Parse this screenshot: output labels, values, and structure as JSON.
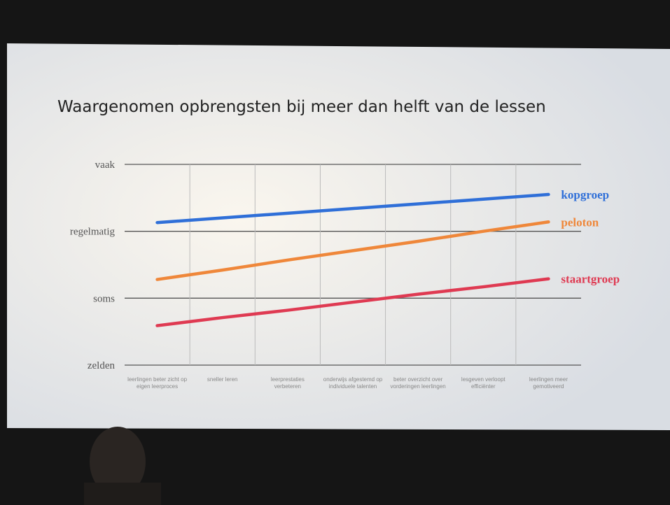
{
  "chart_data": {
    "type": "line",
    "title": "Waargenomen opbrengsten bij meer dan helft van de lessen",
    "categories": [
      "leerlingen beter zicht op eigen leerproces",
      "sneller leren",
      "leerprestaties verbeteren",
      "onderwijs afgestemd op individuele talenten",
      "beter overzicht over vorderingen leerlingen",
      "lesgeven verloopt efficiënter",
      "leerlingen meer gemotiveerd"
    ],
    "series": [
      {
        "name": "kopgroep",
        "color": "#2f6fd8",
        "values": [
          3.13,
          3.2,
          3.27,
          3.34,
          3.41,
          3.48,
          3.55
        ]
      },
      {
        "name": "peloton",
        "color": "#ef873a",
        "values": [
          2.28,
          2.42,
          2.57,
          2.71,
          2.85,
          3.0,
          3.14
        ]
      },
      {
        "name": "staartgroep",
        "color": "#df3a52",
        "values": [
          1.59,
          1.71,
          1.82,
          1.94,
          2.06,
          2.17,
          2.29
        ]
      }
    ],
    "ylim": [
      1,
      4
    ],
    "yticks": [
      {
        "value": 1,
        "label": "zelden"
      },
      {
        "value": 2,
        "label": "soms"
      },
      {
        "value": 3,
        "label": "regelmatig"
      },
      {
        "value": 4,
        "label": "vaak"
      }
    ],
    "grid": true
  }
}
